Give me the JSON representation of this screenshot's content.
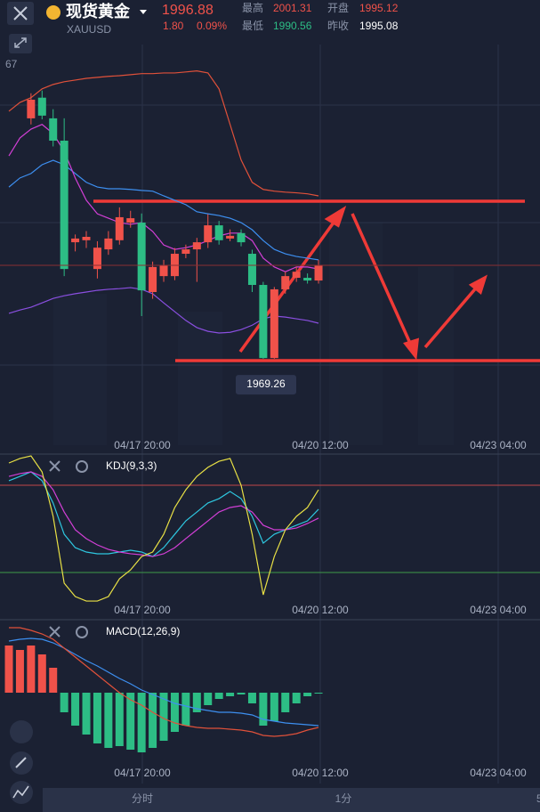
{
  "header": {
    "name": "现货黄金",
    "symbol": "XAUUSD",
    "price": 1996.88,
    "change": "1.80",
    "change_pct": "0.09%",
    "high_label": "最高",
    "high": 2001.31,
    "open_label": "开盘",
    "open": 1995.12,
    "low_label": "最低",
    "low": 1990.56,
    "prev_close_label": "昨收",
    "prev_close": 1995.08
  },
  "chart_data": [
    {
      "type": "candlestick",
      "axis_label": "67",
      "low_tag": 1969.26,
      "up_color": "#f0524a",
      "down_color": "#2dbd85",
      "open": [
        null,
        null,
        2040.3,
        2046.4,
        2040.3,
        2033.7,
        2003.7,
        2004.3,
        1995.8,
        2001.6,
        2004.3,
        2009.5,
        2009.5,
        1989.0,
        1993.7,
        1993.7,
        2000.3,
        2001.6,
        2003.7,
        2008.7,
        2004.8,
        2006.4,
        2000.3,
        1991.1,
        1969.5,
        1989.8,
        1993.2,
        1993.2,
        1992.4
      ],
      "high": [
        null,
        null,
        2047.7,
        2048.5,
        2043.0,
        2040.3,
        2006.0,
        2007.0,
        2004.0,
        2007.0,
        2014.0,
        2013.0,
        2012.2,
        1998.0,
        1998.5,
        2002.0,
        2003.0,
        2005.0,
        2012.0,
        2010.0,
        2007.5,
        2007.5,
        2001.5,
        1992.0,
        1990.5,
        1995.0,
        1996.5,
        1994.5,
        1998.5
      ],
      "low": [
        null,
        null,
        2038.5,
        2040.0,
        2032.0,
        1993.7,
        2001.0,
        2002.0,
        1993.0,
        2000.0,
        2003.0,
        2008.0,
        1981.9,
        1987.0,
        1992.0,
        1992.5,
        1999.0,
        1992.0,
        2002.0,
        2003.0,
        2004.0,
        2002.5,
        1989.0,
        1969.26,
        1969.3,
        1988.5,
        1992.0,
        1991.5,
        1991.5
      ],
      "close": [
        null,
        null,
        2045.8,
        2041.1,
        2033.7,
        1995.8,
        2004.8,
        2005.3,
        2002.1,
        2004.8,
        2011.1,
        2010.8,
        1989.5,
        1996.4,
        1996.9,
        2000.3,
        2001.6,
        2003.7,
        2008.7,
        2004.3,
        2005.6,
        2003.7,
        1991.1,
        1969.5,
        1989.8,
        1993.7,
        1995.0,
        1992.4,
        1996.88
      ],
      "series": [
        {
          "color": "#e0513a",
          "values": [
            2042.4,
            2045.0,
            2046.4,
            2049.0,
            2050.3,
            2051.1,
            2051.6,
            2052.1,
            2052.4,
            2052.7,
            2052.9,
            2053.2,
            2053.5,
            2053.5,
            2053.7,
            2053.7,
            2054.0,
            2054.3,
            2053.7,
            2049.0,
            2038.5,
            2028.0,
            2021.4,
            2019.3,
            2018.8,
            2018.5,
            2018.3,
            2018.0,
            2017.4
          ]
        },
        {
          "color": "#3d8ff0",
          "values": [
            2020.0,
            2022.7,
            2024.0,
            2026.6,
            2027.9,
            2026.6,
            2024.0,
            2021.4,
            2020.0,
            2019.5,
            2019.5,
            2019.3,
            2019.0,
            2018.8,
            2017.4,
            2016.1,
            2014.8,
            2012.7,
            2012.1,
            2011.6,
            2010.8,
            2009.5,
            2007.4,
            2004.2,
            2001.6,
            2000.3,
            1999.5,
            1999.0,
            1998.5
          ]
        },
        {
          "color": "#d23fd6",
          "values": [
            2029.2,
            2034.5,
            2037.1,
            2038.5,
            2035.8,
            2030.6,
            2022.7,
            2016.1,
            2012.1,
            2010.8,
            2009.5,
            2009.0,
            2009.5,
            2006.9,
            2002.9,
            2001.6,
            2002.1,
            2002.9,
            2004.2,
            2005.6,
            2006.4,
            2006.4,
            2004.2,
            1999.0,
            1996.4,
            1995.0,
            1996.4,
            1996.4,
            1995.8
          ]
        },
        {
          "color": "#8a4fe0",
          "values": [
            1982.7,
            1983.7,
            1984.5,
            1985.8,
            1987.1,
            1987.9,
            1988.5,
            1989.0,
            1989.5,
            1989.8,
            1990.0,
            1990.3,
            1989.8,
            1988.5,
            1985.8,
            1983.2,
            1980.6,
            1978.5,
            1977.4,
            1976.9,
            1977.1,
            1977.9,
            1979.2,
            1981.1,
            1981.9,
            1981.6,
            1981.1,
            1980.6,
            1979.8
          ]
        }
      ],
      "ylim": [
        1946.4,
        2062.1
      ],
      "time_labels": [
        "04/17 20:00",
        "04/20 12:00",
        "04/23 04:00"
      ]
    },
    {
      "type": "line",
      "title": "KDJ(9,3,3)",
      "ylim": [
        -11.8,
        100.2
      ],
      "levels": [
        {
          "value": 80,
          "color": "#c04848"
        },
        {
          "value": 20,
          "color": "#3f9a4a"
        }
      ],
      "series": [
        {
          "color": "#2ec7e0",
          "values": [
            83.1,
            86.1,
            89.2,
            83.1,
            67.8,
            46.3,
            37.1,
            34.1,
            32.9,
            32.9,
            34.1,
            35.3,
            34.1,
            31.0,
            37.1,
            46.3,
            55.5,
            61.6,
            67.8,
            70.8,
            75.7,
            70.8,
            58.6,
            40.2,
            46.3,
            49.4,
            52.5,
            55.5,
            63.5
          ]
        },
        {
          "color": "#d23fd6",
          "values": [
            86.1,
            88.0,
            89.2,
            86.1,
            76.9,
            61.6,
            49.4,
            43.3,
            39.0,
            35.9,
            34.1,
            32.9,
            32.2,
            31.0,
            32.9,
            37.1,
            43.3,
            49.4,
            55.5,
            61.6,
            64.7,
            65.9,
            61.6,
            52.5,
            49.4,
            49.4,
            50.6,
            53.7,
            57.4
          ]
        },
        {
          "color": "#e8e045",
          "values": [
            95.3,
            98.4,
            100.2,
            89.2,
            58.6,
            12.7,
            3.5,
            0.4,
            0.4,
            3.5,
            15.7,
            21.8,
            31.0,
            34.1,
            46.3,
            64.7,
            76.9,
            86.1,
            92.3,
            96.5,
            98.4,
            80.0,
            46.3,
            4.7,
            31.0,
            49.4,
            58.6,
            64.7,
            76.9
          ]
        }
      ],
      "time_labels": [
        "04/17 20:00",
        "04/20 12:00",
        "04/23 04:00"
      ]
    },
    {
      "type": "bar",
      "title": "MACD(12,26,9)",
      "ylim": [
        -10.2,
        8.1
      ],
      "up_color": "#f0524a",
      "down_color": "#2dbd85",
      "values": [
        5.3,
        4.8,
        5.3,
        4.3,
        2.8,
        -2.2,
        -3.7,
        -4.7,
        -5.7,
        -6.2,
        -6.0,
        -6.4,
        -6.7,
        -6.2,
        -5.4,
        -4.4,
        -3.7,
        -2.2,
        -1.4,
        -0.7,
        -0.4,
        -0.2,
        -1.2,
        -3.7,
        -3.2,
        -2.2,
        -1.2,
        -0.4,
        -0.1
      ],
      "series": [
        {
          "color": "#3d8ff0",
          "values": [
            5.8,
            6.0,
            6.1,
            6.0,
            5.6,
            5.0,
            4.3,
            3.6,
            3.0,
            2.3,
            1.6,
            1.0,
            0.3,
            -0.2,
            -0.7,
            -1.2,
            -1.5,
            -1.8,
            -2.0,
            -2.2,
            -2.2,
            -2.3,
            -2.5,
            -3.0,
            -3.2,
            -3.4,
            -3.5,
            -3.6,
            -3.7
          ]
        },
        {
          "color": "#e0513a",
          "values": [
            7.3,
            7.3,
            7.0,
            6.6,
            6.0,
            5.0,
            4.0,
            3.0,
            2.0,
            1.0,
            0.0,
            -0.8,
            -1.4,
            -2.2,
            -2.9,
            -3.4,
            -3.7,
            -3.9,
            -4.0,
            -4.0,
            -4.1,
            -4.2,
            -4.4,
            -4.8,
            -4.9,
            -4.8,
            -4.6,
            -4.2,
            -3.9
          ]
        }
      ],
      "time_labels": [
        "04/17 20:00",
        "04/20 12:00",
        "04/23 04:00"
      ]
    }
  ],
  "footer": {
    "tabs": [
      "分时",
      "1分",
      "5"
    ]
  }
}
